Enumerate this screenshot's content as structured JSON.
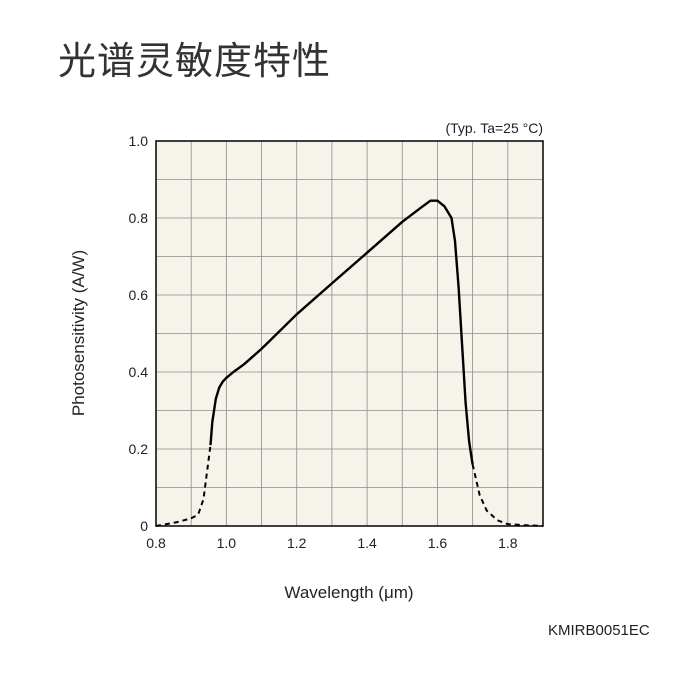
{
  "page": {
    "title": "光谱灵敏度特性",
    "figure_code": "KMIRB0051EC"
  },
  "colors": {
    "plot_background": "#f5f3ea",
    "grid": "#8c8c8c",
    "curve": "#000000"
  },
  "chart_data": {
    "type": "line",
    "title": "光谱灵敏度特性",
    "annotation": "(Typ. Ta=25 °C)",
    "xlabel": "Wavelength (μm)",
    "ylabel": "Photosensitivity (A/W)",
    "xlim": [
      0.8,
      1.9
    ],
    "ylim": [
      0,
      1.0
    ],
    "x_ticks": [
      {
        "value": 0.8,
        "label": "0.8"
      },
      {
        "value": 1.0,
        "label": "1.0"
      },
      {
        "value": 1.2,
        "label": "1.2"
      },
      {
        "value": 1.4,
        "label": "1.4"
      },
      {
        "value": 1.6,
        "label": "1.6"
      },
      {
        "value": 1.8,
        "label": "1.8"
      }
    ],
    "y_ticks": [
      {
        "value": 0,
        "label": "0"
      },
      {
        "value": 0.2,
        "label": "0.2"
      },
      {
        "value": 0.4,
        "label": "0.4"
      },
      {
        "value": 0.6,
        "label": "0.6"
      },
      {
        "value": 0.8,
        "label": "0.8"
      },
      {
        "value": 1.0,
        "label": "1.0"
      }
    ],
    "grid": true,
    "x_minor_step": 0.1,
    "y_minor_step": 0.1,
    "series": [
      {
        "style": "dashed",
        "x": [
          0.8,
          0.83,
          0.86,
          0.9,
          0.92,
          0.935,
          0.945,
          0.955
        ],
        "y": [
          0.0,
          0.005,
          0.01,
          0.02,
          0.03,
          0.07,
          0.14,
          0.21
        ]
      },
      {
        "style": "solid",
        "x": [
          0.955,
          0.96,
          0.97,
          0.98,
          0.99,
          1.0,
          1.02,
          1.05,
          1.1,
          1.15,
          1.2,
          1.3,
          1.4,
          1.5,
          1.55,
          1.58,
          1.6,
          1.62,
          1.64,
          1.65,
          1.66,
          1.67,
          1.68,
          1.69,
          1.7
        ],
        "y": [
          0.21,
          0.27,
          0.33,
          0.36,
          0.375,
          0.385,
          0.4,
          0.42,
          0.46,
          0.505,
          0.55,
          0.63,
          0.71,
          0.79,
          0.825,
          0.845,
          0.845,
          0.83,
          0.8,
          0.74,
          0.62,
          0.47,
          0.32,
          0.22,
          0.16
        ]
      },
      {
        "style": "dashed",
        "x": [
          1.7,
          1.72,
          1.74,
          1.77,
          1.8,
          1.85,
          1.9
        ],
        "y": [
          0.16,
          0.08,
          0.04,
          0.015,
          0.005,
          0.002,
          0.0
        ]
      }
    ]
  }
}
